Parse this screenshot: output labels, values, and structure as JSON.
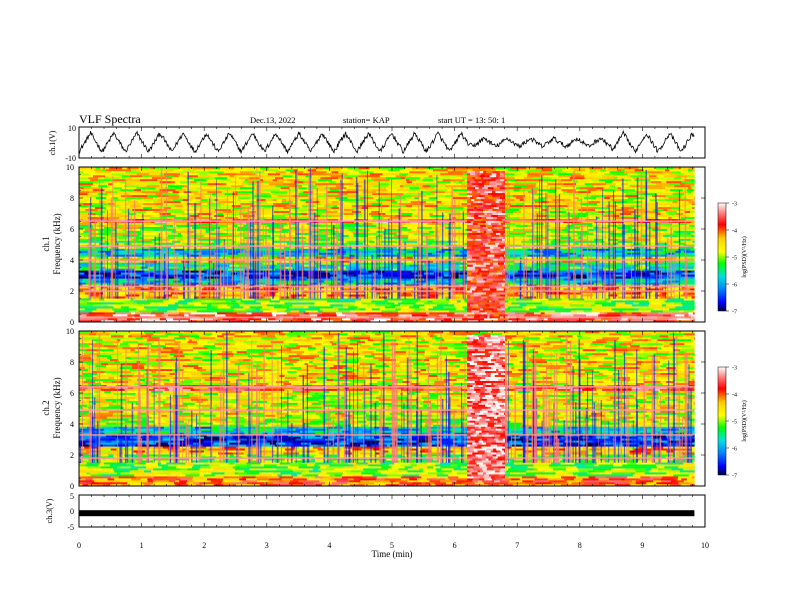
{
  "header": {
    "title": "VLF Spectra",
    "date": "Dec.13, 2022",
    "station": "station= KAP",
    "start_ut": "start  UT  =   13: 50: 1"
  },
  "chart_data": [
    {
      "type": "line",
      "panel": "ch1-waveform",
      "ylabel": "ch.1(V)",
      "ylim": [
        -10,
        10
      ],
      "y_ticks": [
        "10",
        "-10"
      ],
      "x_range_min": [
        0,
        9.83
      ],
      "approx_features": {
        "oscillation_period_min": 0.37,
        "amplitude_v": 6,
        "quiet_interval_min": [
          6.2,
          8.5
        ]
      }
    },
    {
      "type": "heatmap",
      "panel": "ch1-spectrogram",
      "ylabel": "ch.1\nFrequency (kHz)",
      "ylabel_line1": "ch.1",
      "ylabel_line2": "Frequency  (kHz)",
      "y_ticks": [
        "0",
        "2",
        "4",
        "6",
        "8",
        "10"
      ],
      "ylim_khz": [
        0,
        10
      ],
      "x_range_min": [
        0,
        9.83
      ],
      "colorbar": {
        "label": "log(PSD)(V²/Hz)",
        "ticks": [
          "-3",
          "-4",
          "-5",
          "-6",
          "-7"
        ],
        "range": [
          -7,
          -3
        ]
      },
      "bands_khz": [
        {
          "from": 0.0,
          "to": 0.6,
          "level": -3.5
        },
        {
          "from": 0.6,
          "to": 1.6,
          "level": -5.0
        },
        {
          "from": 1.6,
          "to": 2.4,
          "level": -4.3
        },
        {
          "from": 2.4,
          "to": 2.8,
          "level": -5.8
        },
        {
          "from": 2.8,
          "to": 3.3,
          "level": -6.5
        },
        {
          "from": 3.3,
          "to": 3.8,
          "level": -5.5
        },
        {
          "from": 3.8,
          "to": 4.2,
          "level": -4.6
        },
        {
          "from": 4.2,
          "to": 4.7,
          "level": -5.8
        },
        {
          "from": 4.7,
          "to": 5.3,
          "level": -5.0
        },
        {
          "from": 5.3,
          "to": 6.4,
          "level": -4.8
        },
        {
          "from": 6.4,
          "to": 6.7,
          "level": -3.8
        },
        {
          "from": 6.7,
          "to": 10.0,
          "level": -4.6
        }
      ],
      "strong_lines_khz": [
        0.3,
        2.0,
        2.3,
        4.0,
        4.9,
        6.5
      ],
      "burst": {
        "t_min": [
          6.2,
          6.8
        ],
        "f_khz": [
          0.3,
          9.8
        ],
        "level": -3.6
      }
    },
    {
      "type": "heatmap",
      "panel": "ch2-spectrogram",
      "ylabel_line1": "ch.2",
      "ylabel_line2": "Frequency  (kHz)",
      "y_ticks": [
        "0",
        "2",
        "4",
        "6",
        "8",
        "10"
      ],
      "ylim_khz": [
        0,
        10
      ],
      "x_range_min": [
        0,
        9.83
      ],
      "colorbar": {
        "label": "log(PSD)(V²/Hz)",
        "ticks": [
          "-3",
          "-4",
          "-5",
          "-6",
          "-7"
        ],
        "range": [
          -7,
          -3
        ]
      },
      "bands_khz": [
        {
          "from": 0.0,
          "to": 0.6,
          "level": -4.0
        },
        {
          "from": 0.6,
          "to": 2.0,
          "level": -5.0
        },
        {
          "from": 2.0,
          "to": 2.6,
          "level": -4.4
        },
        {
          "from": 2.6,
          "to": 3.3,
          "level": -6.4
        },
        {
          "from": 3.3,
          "to": 3.8,
          "level": -5.8
        },
        {
          "from": 3.8,
          "to": 4.4,
          "level": -4.8
        },
        {
          "from": 4.4,
          "to": 6.2,
          "level": -4.7
        },
        {
          "from": 6.2,
          "to": 6.6,
          "level": -3.8
        },
        {
          "from": 6.6,
          "to": 10.0,
          "level": -4.6
        }
      ],
      "strong_lines_khz": [
        1.8,
        3.3,
        4.9,
        6.4
      ],
      "burst": {
        "t_min": [
          6.2,
          6.8
        ],
        "f_khz": [
          0.3,
          9.8
        ],
        "level": -3.4
      }
    },
    {
      "type": "line",
      "panel": "ch3-waveform",
      "ylabel": "ch.3(V)",
      "ylim": [
        -5,
        5
      ],
      "y_ticks": [
        "5",
        "0",
        "-5"
      ],
      "x_range_min": [
        0,
        9.83
      ],
      "approx_level_v": -0.7,
      "xlabel": "Time  (min)",
      "x_ticks": [
        "0",
        "1",
        "2",
        "3",
        "4",
        "5",
        "6",
        "7",
        "8",
        "9",
        "10"
      ],
      "xlim": [
        0,
        10
      ]
    }
  ]
}
